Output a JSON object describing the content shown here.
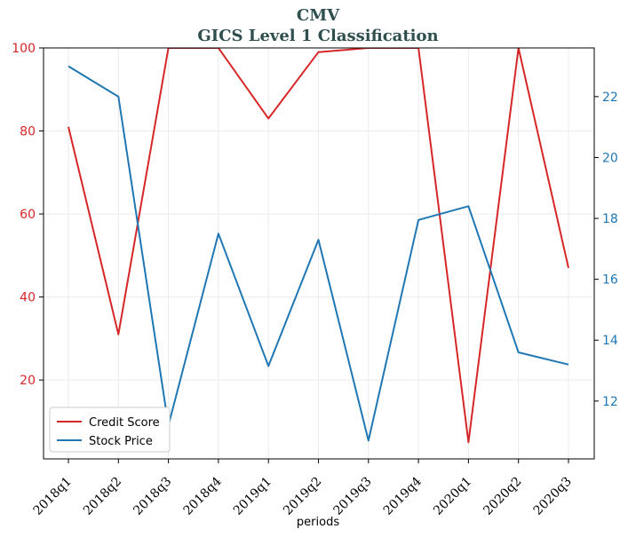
{
  "chart_data": {
    "type": "line",
    "title_line1": "CMV",
    "title_line2": "GICS Level 1 Classification",
    "xlabel": "periods",
    "categories": [
      "2018q1",
      "2018q2",
      "2018q3",
      "2018q4",
      "2019q1",
      "2019q2",
      "2019q3",
      "2019q4",
      "2020q1",
      "2020q2",
      "2020q3"
    ],
    "series": [
      {
        "name": "Credit Score",
        "axis": "left",
        "color": "#d62728",
        "values": [
          81,
          31,
          100,
          100,
          83,
          99,
          100,
          100,
          5,
          100,
          47
        ]
      },
      {
        "name": "Stock Price",
        "axis": "right",
        "color": "#1f77b4",
        "values": [
          23.0,
          22.0,
          11.2,
          17.5,
          13.15,
          17.3,
          10.7,
          17.95,
          18.4,
          13.6,
          13.2
        ]
      }
    ],
    "left_axis": {
      "ylim": [
        1,
        100
      ],
      "ticks": [
        20,
        40,
        60,
        80,
        100
      ]
    },
    "right_axis": {
      "ylim": [
        10.1,
        23.6
      ],
      "ticks": [
        12,
        14,
        16,
        18,
        20,
        22
      ]
    },
    "grid": true,
    "legend_position": "bottom-left"
  }
}
